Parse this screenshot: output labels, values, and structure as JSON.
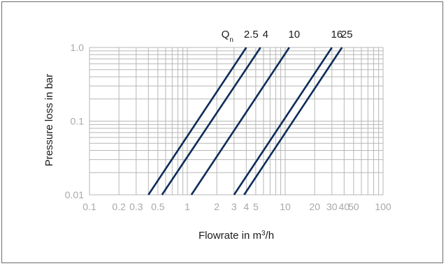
{
  "chart_data": {
    "type": "line",
    "xlabel": "Flowrate in m³/h",
    "ylabel": "Pressure loss in bar",
    "xscale": "log",
    "yscale": "log",
    "xlim": [
      0.1,
      100
    ],
    "ylim": [
      0.01,
      1.0
    ],
    "grid": true,
    "x_ticks": [
      "0.1",
      "0.2",
      "0.3",
      "0.5",
      "1",
      "2",
      "3",
      "4",
      "5",
      "10",
      "20",
      "30",
      "40",
      "50",
      "100"
    ],
    "y_ticks": [
      "0.01",
      "0.1",
      "1.0"
    ],
    "series_label_prefix": "Qn",
    "line_color": "#0d2d5a",
    "series": [
      {
        "name": "2.5",
        "x": [
          0.4,
          4.0
        ],
        "y": [
          0.01,
          1.0
        ]
      },
      {
        "name": "4",
        "x": [
          0.55,
          5.6
        ],
        "y": [
          0.01,
          1.0
        ]
      },
      {
        "name": "10",
        "x": [
          1.1,
          11
        ],
        "y": [
          0.01,
          1.0
        ]
      },
      {
        "name": "16",
        "x": [
          3.0,
          30
        ],
        "y": [
          0.01,
          1.0
        ]
      },
      {
        "name": "25",
        "x": [
          3.8,
          38
        ],
        "y": [
          0.01,
          1.0
        ]
      }
    ]
  }
}
